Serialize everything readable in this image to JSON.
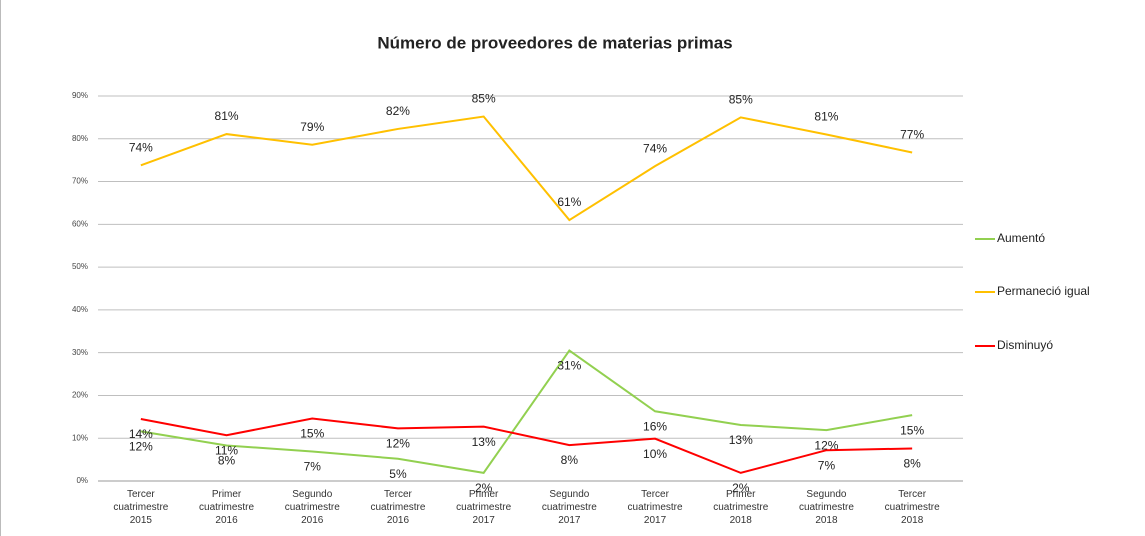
{
  "chart_data": {
    "type": "line",
    "title": "Número de proveedores de materias primas",
    "categories": [
      "Tercer cuatrimestre 2015",
      "Primer cuatrimestre 2016",
      "Segundo cuatrimestre 2016",
      "Tercer cuatrimestre 2016",
      "Primer cuatrimestre 2017",
      "Segundo cuatrimestre 2017",
      "Tercer cuatrimestre 2017",
      "Primer cuatrimestre 2018",
      "Segundo cuatrimestre 2018",
      "Tercer cuatrimestre 2018"
    ],
    "series": [
      {
        "name": "Aumentó",
        "color": "#92d050",
        "values": [
          11.6,
          8.3,
          6.9,
          5.2,
          1.9,
          30.5,
          16.3,
          13.1,
          11.9,
          15.4
        ],
        "value_labels": [
          "12%",
          "8%",
          "7%",
          "5%",
          "2%",
          "31%",
          "16%",
          "13%",
          "12%",
          "15%"
        ]
      },
      {
        "name": "Permaneció igual",
        "color": "#ffc000",
        "values": [
          73.8,
          81.1,
          78.6,
          82.3,
          85.2,
          61.0,
          73.6,
          85.0,
          81.0,
          76.8
        ],
        "value_labels": [
          "74%",
          "81%",
          "79%",
          "82%",
          "85%",
          "61%",
          "74%",
          "85%",
          "81%",
          "77%"
        ]
      },
      {
        "name": "Disminuyó",
        "color": "#ff0000",
        "values": [
          14.5,
          10.7,
          14.6,
          12.3,
          12.7,
          8.4,
          9.9,
          1.9,
          7.2,
          7.6
        ],
        "value_labels": [
          "14%",
          "11%",
          "15%",
          "12%",
          "13%",
          "8%",
          "10%",
          "2%",
          "7%",
          "8%"
        ]
      }
    ],
    "ylim": [
      0,
      90
    ],
    "yticks": [
      {
        "value": 0,
        "label": "0%"
      },
      {
        "value": 10,
        "label": "10%"
      },
      {
        "value": 20,
        "label": "20%"
      },
      {
        "value": 30,
        "label": "30%"
      },
      {
        "value": 40,
        "label": "40%"
      },
      {
        "value": 50,
        "label": "50%"
      },
      {
        "value": 60,
        "label": "60%"
      },
      {
        "value": 70,
        "label": "70%"
      },
      {
        "value": 80,
        "label": "80%"
      },
      {
        "value": 90,
        "label": "90%"
      }
    ],
    "grid": true,
    "legend": "right"
  }
}
